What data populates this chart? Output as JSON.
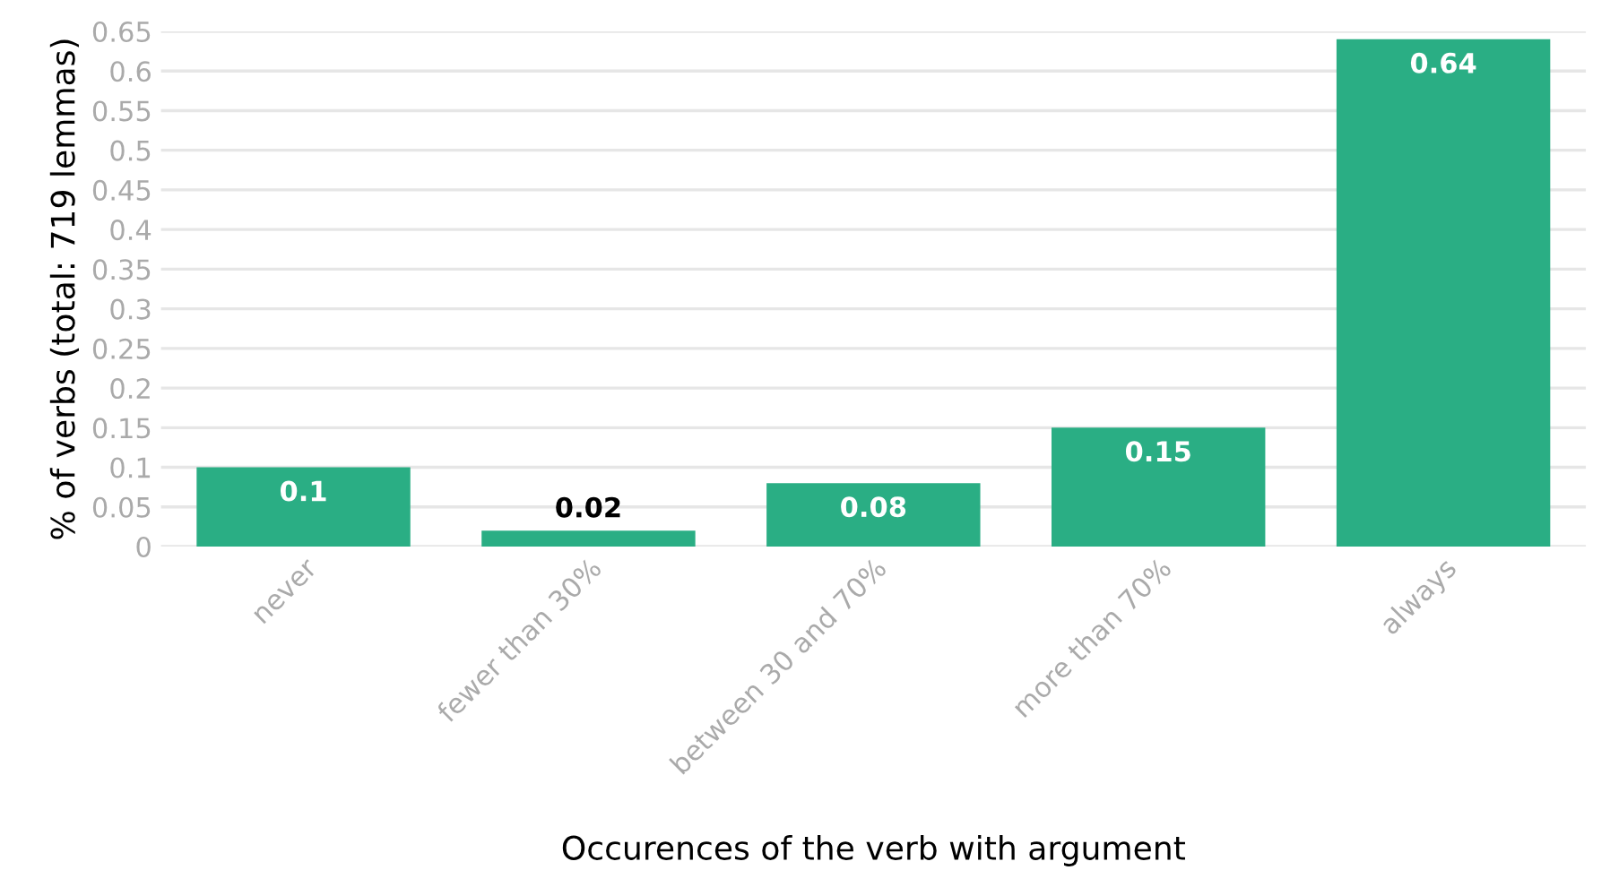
{
  "chart_data": {
    "type": "bar",
    "xlabel": "Occurences of the verb with argument",
    "ylabel": "% of verbs (total: 719 lemmas)",
    "categories": [
      "never",
      "fewer than 30%",
      "between 30 and 70%",
      "more than 70%",
      "always"
    ],
    "values": [
      0.1,
      0.02,
      0.08,
      0.15,
      0.64
    ],
    "color": "#2aae84",
    "ylim": [
      0,
      0.65
    ],
    "yticks": [
      0,
      0.05,
      0.1,
      0.15,
      0.2,
      0.25,
      0.3,
      0.35,
      0.4,
      0.45,
      0.5,
      0.55,
      0.6,
      0.65
    ],
    "grid": "y",
    "data_labels": true
  }
}
